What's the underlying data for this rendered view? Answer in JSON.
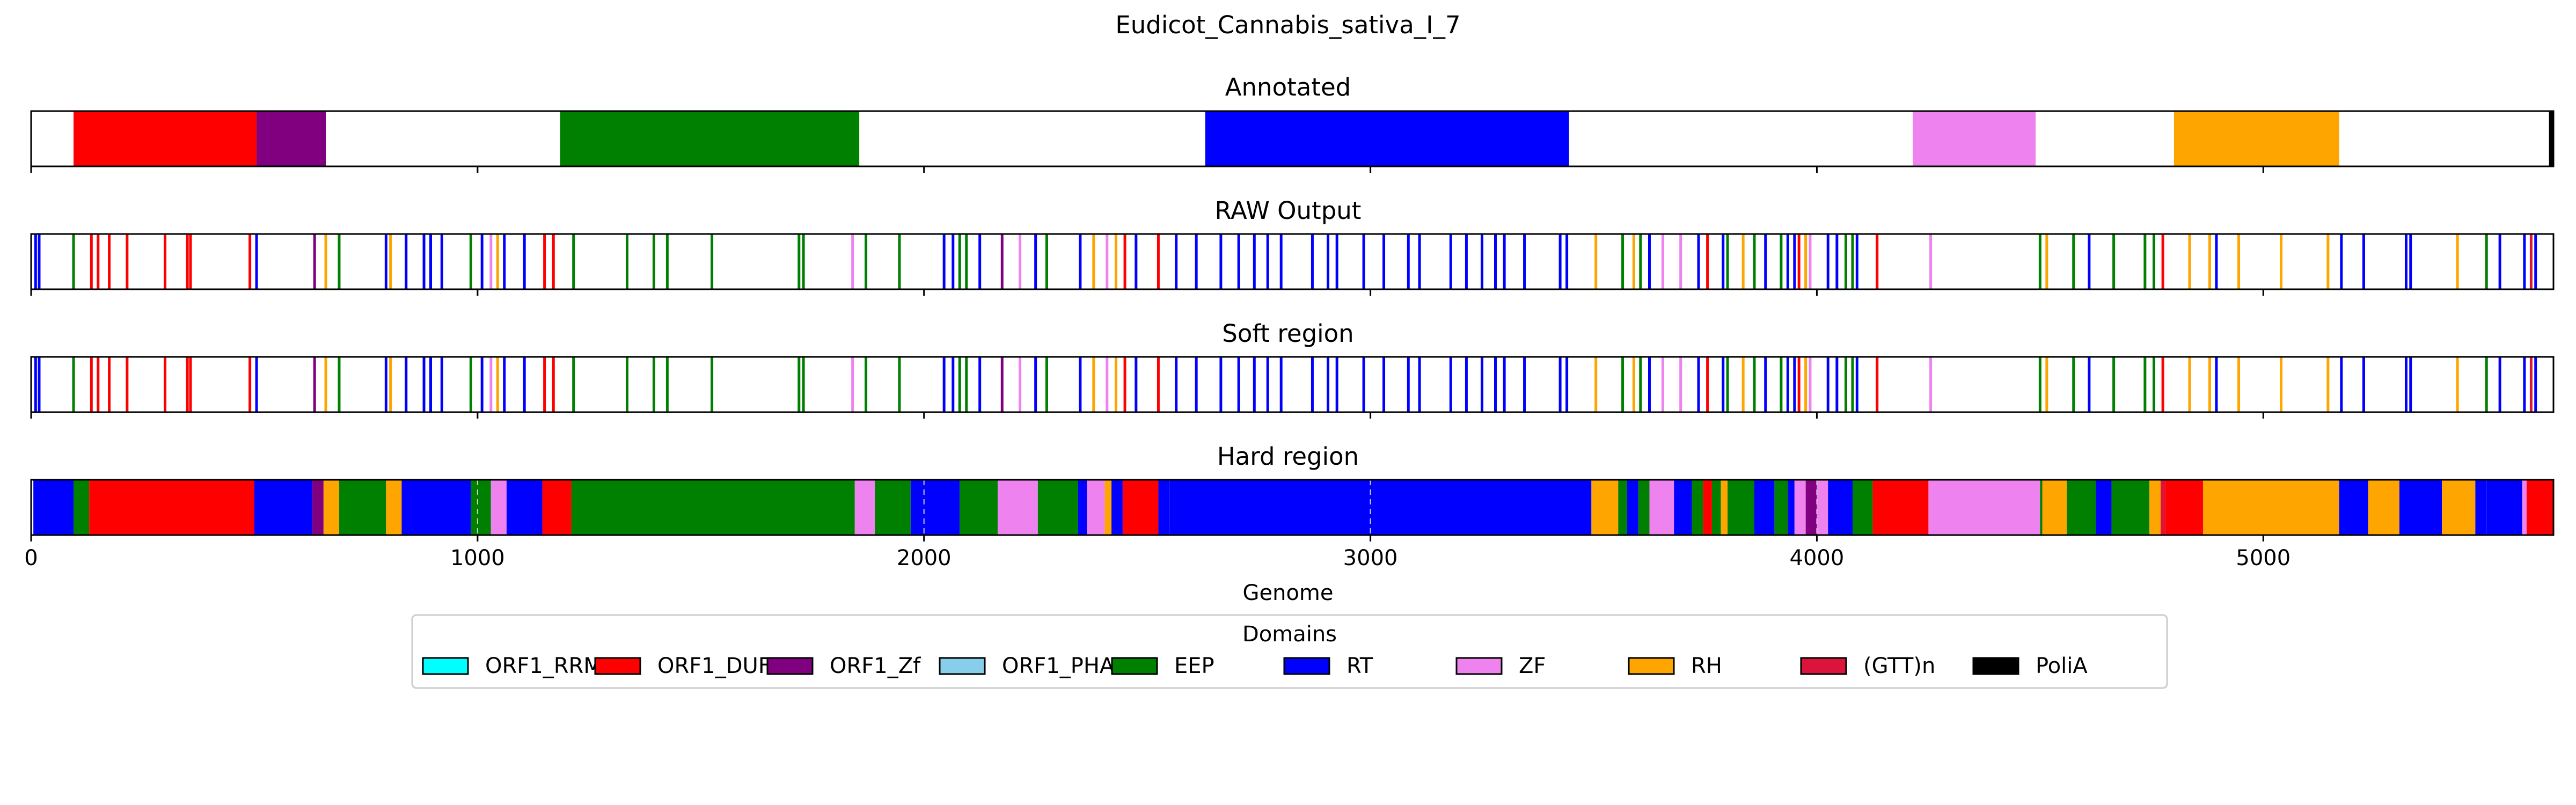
{
  "title": "Eudicot_Cannabis_sativa_I_7",
  "xlabel": "Genome",
  "colors": {
    "ORF1_RRM": "#00ffff",
    "ORF1_DUF": "#ff0000",
    "ORF1_Zf": "#800080",
    "ORF1_PHA": "#87ceeb",
    "EEP": "#008000",
    "RT": "#0000ff",
    "ZF": "#ee82ee",
    "RH": "#ffa500",
    "(GTT)n": "#dc143c",
    "PoliA": "#000000"
  },
  "legend": {
    "title": "Domains",
    "placement": "lower-center",
    "items": [
      "ORF1_RRM",
      "ORF1_DUF",
      "ORF1_Zf",
      "ORF1_PHA",
      "EEP",
      "RT",
      "ZF",
      "RH",
      "(GTT)n",
      "PoliA"
    ]
  },
  "chart_data": {
    "type": "track",
    "xlim": [
      0,
      5650
    ],
    "xticks": [
      0,
      1000,
      2000,
      3000,
      4000,
      5000
    ],
    "tracks": [
      {
        "title": "Annotated",
        "kind": "segments",
        "segments": [
          {
            "start": 95,
            "end": 505,
            "domain": "ORF1_DUF"
          },
          {
            "start": 505,
            "end": 660,
            "domain": "ORF1_Zf"
          },
          {
            "start": 1185,
            "end": 1855,
            "domain": "EEP"
          },
          {
            "start": 2630,
            "end": 3445,
            "domain": "RT"
          },
          {
            "start": 4215,
            "end": 4490,
            "domain": "ZF"
          },
          {
            "start": 4800,
            "end": 5170,
            "domain": "RH"
          },
          {
            "start": 5640,
            "end": 5650,
            "domain": "PoliA"
          }
        ]
      },
      {
        "title": "RAW Output",
        "kind": "marks",
        "marks": [
          {
            "x": 10,
            "domain": "RT"
          },
          {
            "x": 18,
            "domain": "RT"
          },
          {
            "x": 95,
            "domain": "EEP"
          },
          {
            "x": 135,
            "domain": "ORF1_DUF"
          },
          {
            "x": 150,
            "domain": "ORF1_DUF"
          },
          {
            "x": 175,
            "domain": "ORF1_DUF"
          },
          {
            "x": 215,
            "domain": "ORF1_DUF"
          },
          {
            "x": 300,
            "domain": "ORF1_DUF"
          },
          {
            "x": 350,
            "domain": "ORF1_DUF"
          },
          {
            "x": 357,
            "domain": "ORF1_DUF"
          },
          {
            "x": 490,
            "domain": "ORF1_DUF"
          },
          {
            "x": 505,
            "domain": "RT"
          },
          {
            "x": 635,
            "domain": "ORF1_Zf"
          },
          {
            "x": 660,
            "domain": "RH"
          },
          {
            "x": 690,
            "domain": "EEP"
          },
          {
            "x": 795,
            "domain": "RT"
          },
          {
            "x": 805,
            "domain": "RH"
          },
          {
            "x": 840,
            "domain": "RT"
          },
          {
            "x": 880,
            "domain": "RT"
          },
          {
            "x": 895,
            "domain": "RT"
          },
          {
            "x": 920,
            "domain": "RT"
          },
          {
            "x": 985,
            "domain": "EEP"
          },
          {
            "x": 1010,
            "domain": "RT"
          },
          {
            "x": 1030,
            "domain": "ZF"
          },
          {
            "x": 1045,
            "domain": "RH"
          },
          {
            "x": 1060,
            "domain": "RT"
          },
          {
            "x": 1105,
            "domain": "RT"
          },
          {
            "x": 1150,
            "domain": "ORF1_DUF"
          },
          {
            "x": 1170,
            "domain": "ORF1_DUF"
          },
          {
            "x": 1215,
            "domain": "EEP"
          },
          {
            "x": 1335,
            "domain": "EEP"
          },
          {
            "x": 1395,
            "domain": "EEP"
          },
          {
            "x": 1425,
            "domain": "EEP"
          },
          {
            "x": 1525,
            "domain": "EEP"
          },
          {
            "x": 1720,
            "domain": "EEP"
          },
          {
            "x": 1730,
            "domain": "EEP"
          },
          {
            "x": 1840,
            "domain": "ZF"
          },
          {
            "x": 1870,
            "domain": "EEP"
          },
          {
            "x": 1945,
            "domain": "EEP"
          },
          {
            "x": 2045,
            "domain": "RT"
          },
          {
            "x": 2065,
            "domain": "RT"
          },
          {
            "x": 2080,
            "domain": "EEP"
          },
          {
            "x": 2095,
            "domain": "EEP"
          },
          {
            "x": 2125,
            "domain": "RT"
          },
          {
            "x": 2175,
            "domain": "ORF1_Zf"
          },
          {
            "x": 2215,
            "domain": "ZF"
          },
          {
            "x": 2250,
            "domain": "RT"
          },
          {
            "x": 2275,
            "domain": "EEP"
          },
          {
            "x": 2350,
            "domain": "RT"
          },
          {
            "x": 2380,
            "domain": "RH"
          },
          {
            "x": 2410,
            "domain": "ZF"
          },
          {
            "x": 2430,
            "domain": "RH"
          },
          {
            "x": 2450,
            "domain": "ORF1_DUF"
          },
          {
            "x": 2475,
            "domain": "RT"
          },
          {
            "x": 2525,
            "domain": "ORF1_DUF"
          },
          {
            "x": 2565,
            "domain": "RT"
          },
          {
            "x": 2610,
            "domain": "RT"
          },
          {
            "x": 2665,
            "domain": "RT"
          },
          {
            "x": 2705,
            "domain": "RT"
          },
          {
            "x": 2740,
            "domain": "RT"
          },
          {
            "x": 2770,
            "domain": "RT"
          },
          {
            "x": 2800,
            "domain": "RT"
          },
          {
            "x": 2870,
            "domain": "RT"
          },
          {
            "x": 2905,
            "domain": "RT"
          },
          {
            "x": 2925,
            "domain": "RT"
          },
          {
            "x": 2985,
            "domain": "RT"
          },
          {
            "x": 3030,
            "domain": "RT"
          },
          {
            "x": 3085,
            "domain": "RT"
          },
          {
            "x": 3110,
            "domain": "RT"
          },
          {
            "x": 3180,
            "domain": "RT"
          },
          {
            "x": 3215,
            "domain": "RT"
          },
          {
            "x": 3250,
            "domain": "RT"
          },
          {
            "x": 3280,
            "domain": "RT"
          },
          {
            "x": 3300,
            "domain": "RT"
          },
          {
            "x": 3345,
            "domain": "RT"
          },
          {
            "x": 3425,
            "domain": "RT"
          },
          {
            "x": 3440,
            "domain": "RT"
          },
          {
            "x": 3505,
            "domain": "RH"
          },
          {
            "x": 3565,
            "domain": "EEP"
          },
          {
            "x": 3590,
            "domain": "RH"
          },
          {
            "x": 3605,
            "domain": "EEP"
          },
          {
            "x": 3625,
            "domain": "RT"
          },
          {
            "x": 3655,
            "domain": "ZF"
          },
          {
            "x": 3695,
            "domain": "ZF"
          },
          {
            "x": 3735,
            "domain": "RT"
          },
          {
            "x": 3755,
            "domain": "ORF1_DUF"
          },
          {
            "x": 3790,
            "domain": "RT"
          },
          {
            "x": 3800,
            "domain": "EEP"
          },
          {
            "x": 3835,
            "domain": "RH"
          },
          {
            "x": 3860,
            "domain": "EEP"
          },
          {
            "x": 3885,
            "domain": "RT"
          },
          {
            "x": 3920,
            "domain": "EEP"
          },
          {
            "x": 3935,
            "domain": "RT"
          },
          {
            "x": 3950,
            "domain": "RT"
          },
          {
            "x": 3960,
            "domain": "ORF1_DUF"
          },
          {
            "x": 3975,
            "domain": "RH"
          },
          {
            "x": 3985,
            "domain": "ZF"
          },
          {
            "x": 4025,
            "domain": "RT"
          },
          {
            "x": 4045,
            "domain": "RT"
          },
          {
            "x": 4065,
            "domain": "EEP"
          },
          {
            "x": 4080,
            "domain": "EEP"
          },
          {
            "x": 4090,
            "domain": "RT"
          },
          {
            "x": 4135,
            "domain": "ORF1_DUF"
          },
          {
            "x": 4255,
            "domain": "ZF"
          },
          {
            "x": 4500,
            "domain": "EEP"
          },
          {
            "x": 4515,
            "domain": "RH"
          },
          {
            "x": 4575,
            "domain": "EEP"
          },
          {
            "x": 4610,
            "domain": "RT"
          },
          {
            "x": 4665,
            "domain": "EEP"
          },
          {
            "x": 4735,
            "domain": "EEP"
          },
          {
            "x": 4755,
            "domain": "EEP"
          },
          {
            "x": 4775,
            "domain": "ORF1_DUF"
          },
          {
            "x": 4835,
            "domain": "RH"
          },
          {
            "x": 4880,
            "domain": "RH"
          },
          {
            "x": 4895,
            "domain": "RT"
          },
          {
            "x": 4945,
            "domain": "RH"
          },
          {
            "x": 5040,
            "domain": "RH"
          },
          {
            "x": 5145,
            "domain": "RH"
          },
          {
            "x": 5175,
            "domain": "RT"
          },
          {
            "x": 5225,
            "domain": "RT"
          },
          {
            "x": 5320,
            "domain": "RT"
          },
          {
            "x": 5330,
            "domain": "RT"
          },
          {
            "x": 5435,
            "domain": "RH"
          },
          {
            "x": 5500,
            "domain": "EEP"
          },
          {
            "x": 5530,
            "domain": "RT"
          },
          {
            "x": 5585,
            "domain": "RT"
          },
          {
            "x": 5600,
            "domain": "(GTT)n"
          },
          {
            "x": 5610,
            "domain": "RT"
          }
        ]
      },
      {
        "title": "Soft region",
        "kind": "marks",
        "marks": "same as RAW Output"
      },
      {
        "title": "Hard region",
        "kind": "segments",
        "segments": [
          {
            "start": 5,
            "end": 95,
            "domain": "RT"
          },
          {
            "start": 95,
            "end": 130,
            "domain": "EEP"
          },
          {
            "start": 130,
            "end": 500,
            "domain": "ORF1_DUF"
          },
          {
            "start": 500,
            "end": 630,
            "domain": "RT"
          },
          {
            "start": 630,
            "end": 655,
            "domain": "ORF1_Zf"
          },
          {
            "start": 655,
            "end": 690,
            "domain": "RH"
          },
          {
            "start": 690,
            "end": 795,
            "domain": "EEP"
          },
          {
            "start": 795,
            "end": 830,
            "domain": "RH"
          },
          {
            "start": 830,
            "end": 985,
            "domain": "RT"
          },
          {
            "start": 985,
            "end": 1030,
            "domain": "EEP"
          },
          {
            "start": 1030,
            "end": 1065,
            "domain": "ZF"
          },
          {
            "start": 1065,
            "end": 1145,
            "domain": "RT"
          },
          {
            "start": 1145,
            "end": 1210,
            "domain": "ORF1_DUF"
          },
          {
            "start": 1210,
            "end": 1845,
            "domain": "EEP"
          },
          {
            "start": 1845,
            "end": 1890,
            "domain": "ZF"
          },
          {
            "start": 1890,
            "end": 1970,
            "domain": "EEP"
          },
          {
            "start": 1970,
            "end": 2080,
            "domain": "RT"
          },
          {
            "start": 2080,
            "end": 2165,
            "domain": "EEP"
          },
          {
            "start": 2165,
            "end": 2255,
            "domain": "ZF"
          },
          {
            "start": 2255,
            "end": 2345,
            "domain": "EEP"
          },
          {
            "start": 2345,
            "end": 2365,
            "domain": "RT"
          },
          {
            "start": 2365,
            "end": 2405,
            "domain": "ZF"
          },
          {
            "start": 2405,
            "end": 2420,
            "domain": "RH"
          },
          {
            "start": 2420,
            "end": 2445,
            "domain": "RT"
          },
          {
            "start": 2445,
            "end": 2525,
            "domain": "ORF1_DUF"
          },
          {
            "start": 2525,
            "end": 2550,
            "domain": "RT"
          },
          {
            "start": 2550,
            "end": 3495,
            "domain": "RT"
          },
          {
            "start": 3495,
            "end": 3555,
            "domain": "RH"
          },
          {
            "start": 3555,
            "end": 3575,
            "domain": "EEP"
          },
          {
            "start": 3575,
            "end": 3600,
            "domain": "RT"
          },
          {
            "start": 3600,
            "end": 3625,
            "domain": "EEP"
          },
          {
            "start": 3625,
            "end": 3680,
            "domain": "ZF"
          },
          {
            "start": 3680,
            "end": 3720,
            "domain": "RT"
          },
          {
            "start": 3720,
            "end": 3745,
            "domain": "EEP"
          },
          {
            "start": 3745,
            "end": 3765,
            "domain": "ORF1_DUF"
          },
          {
            "start": 3765,
            "end": 3785,
            "domain": "EEP"
          },
          {
            "start": 3785,
            "end": 3800,
            "domain": "RH"
          },
          {
            "start": 3800,
            "end": 3860,
            "domain": "EEP"
          },
          {
            "start": 3860,
            "end": 3905,
            "domain": "RT"
          },
          {
            "start": 3905,
            "end": 3935,
            "domain": "EEP"
          },
          {
            "start": 3935,
            "end": 3950,
            "domain": "RT"
          },
          {
            "start": 3950,
            "end": 3975,
            "domain": "ZF"
          },
          {
            "start": 3975,
            "end": 4000,
            "domain": "ORF1_Zf"
          },
          {
            "start": 4000,
            "end": 4025,
            "domain": "ZF"
          },
          {
            "start": 4025,
            "end": 4080,
            "domain": "RT"
          },
          {
            "start": 4080,
            "end": 4125,
            "domain": "EEP"
          },
          {
            "start": 4125,
            "end": 4250,
            "domain": "ORF1_DUF"
          },
          {
            "start": 4250,
            "end": 4500,
            "domain": "ZF"
          },
          {
            "start": 4500,
            "end": 4505,
            "domain": "EEP"
          },
          {
            "start": 4505,
            "end": 4560,
            "domain": "RH"
          },
          {
            "start": 4560,
            "end": 4625,
            "domain": "EEP"
          },
          {
            "start": 4625,
            "end": 4660,
            "domain": "RT"
          },
          {
            "start": 4660,
            "end": 4745,
            "domain": "EEP"
          },
          {
            "start": 4745,
            "end": 4770,
            "domain": "RH"
          },
          {
            "start": 4770,
            "end": 4780,
            "domain": "(GTT)n"
          },
          {
            "start": 4780,
            "end": 4865,
            "domain": "ORF1_DUF"
          },
          {
            "start": 4865,
            "end": 5170,
            "domain": "RH"
          },
          {
            "start": 5170,
            "end": 5235,
            "domain": "RT"
          },
          {
            "start": 5235,
            "end": 5305,
            "domain": "RH"
          },
          {
            "start": 5305,
            "end": 5400,
            "domain": "RT"
          },
          {
            "start": 5400,
            "end": 5475,
            "domain": "RH"
          },
          {
            "start": 5475,
            "end": 5500,
            "domain": "RT"
          },
          {
            "start": 5500,
            "end": 5580,
            "domain": "RT"
          },
          {
            "start": 5580,
            "end": 5590,
            "domain": "ZF"
          },
          {
            "start": 5590,
            "end": 5650,
            "domain": "ORF1_DUF"
          }
        ],
        "dashed_gridlines": [
          1000,
          2000,
          3000,
          4000
        ]
      }
    ]
  }
}
